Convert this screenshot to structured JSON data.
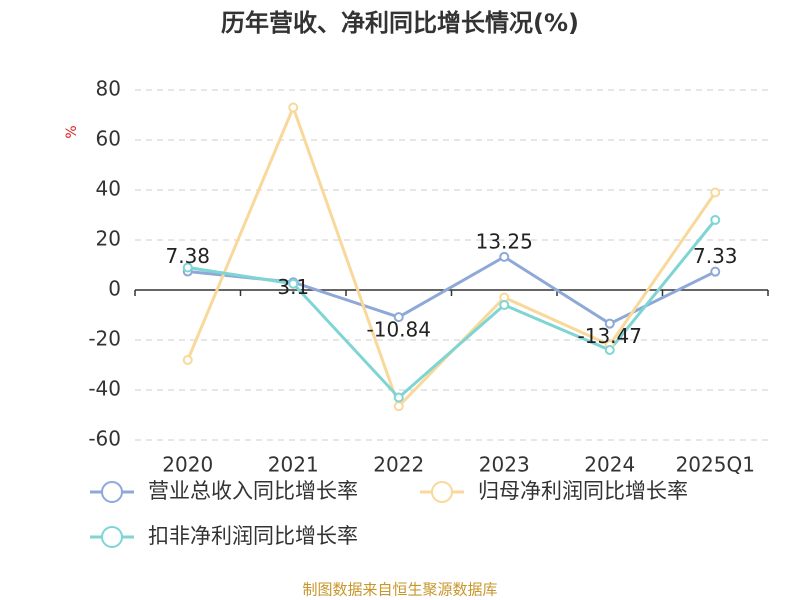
{
  "chart_data": {
    "type": "line",
    "title": "历年营收、净利同比增长情况(%)",
    "y_label": "%",
    "categories": [
      "2020",
      "2021",
      "2022",
      "2023",
      "2024",
      "2025Q1"
    ],
    "series": [
      {
        "name": "营业总收入同比增长率",
        "color": "#8ea8d8",
        "values": [
          7.38,
          3.1,
          -10.84,
          13.25,
          -13.47,
          7.33
        ],
        "labels": true
      },
      {
        "name": "归母净利润同比增长率",
        "color": "#f9d89b",
        "values": [
          -28,
          73,
          -46.5,
          -3,
          -22,
          39
        ],
        "labels": false
      },
      {
        "name": "扣非净利润同比增长率",
        "color": "#7fd4d4",
        "values": [
          9,
          2.5,
          -43,
          -6,
          -24,
          28
        ],
        "labels": false
      }
    ],
    "ylim": [
      -60,
      80
    ],
    "yticks": [
      -60,
      -40,
      -20,
      0,
      20,
      40,
      60,
      80
    ],
    "grid": true,
    "source": "制图数据来自恒生聚源数据库"
  }
}
